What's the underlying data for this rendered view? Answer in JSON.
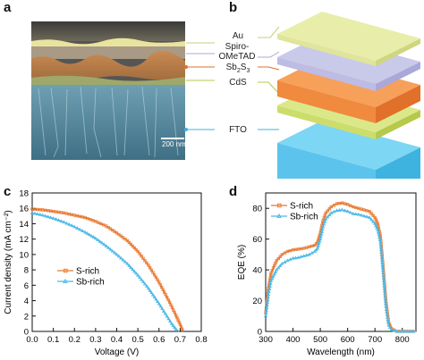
{
  "panels": {
    "a": "a",
    "b": "b",
    "c": "c",
    "d": "d"
  },
  "sem": {
    "scale_bar": "200 nm"
  },
  "stack": {
    "layers": [
      {
        "name": "Au",
        "top": "#e8eeaa",
        "side": "#cfd67d",
        "front": "#dfe59a"
      },
      {
        "name_line1": "Spiro-",
        "name_line2": "OMeTAD",
        "top": "#c9c9ea",
        "side": "#a9a8d9",
        "front": "#bdbce4"
      },
      {
        "name_main": "Sb",
        "name_sub1": "2",
        "name_mid": "S",
        "name_sub2": "3",
        "top": "#f6a05a",
        "side": "#e0702a",
        "front": "#f08a3e"
      },
      {
        "name": "CdS",
        "top": "#dbe88a",
        "side": "#b7c94a",
        "front": "#cddd6c"
      },
      {
        "name": "FTO",
        "top": "#7dd6f4",
        "side": "#3fb3e0",
        "front": "#5cc4ec"
      }
    ]
  },
  "chart_data": [
    {
      "panel": "c",
      "type": "line",
      "xlabel": "Voltage (V)",
      "ylabel": "Current density (mA cm⁻²)",
      "xlim": [
        0.0,
        0.8
      ],
      "ylim": [
        0,
        18
      ],
      "xticks": [
        "0.0",
        "0.1",
        "0.2",
        "0.3",
        "0.4",
        "0.5",
        "0.6",
        "0.7",
        "0.8"
      ],
      "yticks": [
        "0",
        "2",
        "4",
        "6",
        "8",
        "10",
        "12",
        "14",
        "16",
        "18"
      ],
      "legend_position": "lower-left",
      "series": [
        {
          "name": "S-rich",
          "color": "#e8762d",
          "marker": "square",
          "x": [
            0.0,
            0.05,
            0.1,
            0.15,
            0.2,
            0.25,
            0.3,
            0.35,
            0.4,
            0.45,
            0.5,
            0.55,
            0.6,
            0.65,
            0.68,
            0.7,
            0.715
          ],
          "y": [
            15.9,
            15.8,
            15.6,
            15.4,
            15.1,
            14.8,
            14.3,
            13.7,
            12.8,
            11.8,
            10.4,
            8.6,
            6.4,
            3.8,
            2.1,
            0.9,
            0.0
          ]
        },
        {
          "name": "Sb-rich",
          "color": "#4bb8e8",
          "marker": "triangle",
          "x": [
            0.0,
            0.05,
            0.1,
            0.15,
            0.2,
            0.25,
            0.3,
            0.35,
            0.4,
            0.45,
            0.5,
            0.55,
            0.6,
            0.63,
            0.66,
            0.68,
            0.695
          ],
          "y": [
            15.4,
            15.1,
            14.7,
            14.2,
            13.6,
            12.9,
            12.1,
            11.1,
            10.0,
            8.8,
            7.3,
            5.6,
            3.6,
            2.3,
            1.0,
            0.3,
            0.0
          ]
        }
      ]
    },
    {
      "panel": "d",
      "type": "line",
      "xlabel": "Wavelength (nm)",
      "ylabel": "EQE (%)",
      "xlim": [
        300,
        850
      ],
      "ylim": [
        0,
        90
      ],
      "xticks": [
        "300",
        "400",
        "500",
        "600",
        "700",
        "800"
      ],
      "yticks": [
        "0",
        "20",
        "40",
        "60",
        "80"
      ],
      "legend_position": "top-left",
      "series": [
        {
          "name": "S-rich",
          "color": "#e8762d",
          "marker": "square",
          "x": [
            300,
            310,
            320,
            340,
            360,
            380,
            400,
            420,
            440,
            460,
            480,
            490,
            500,
            510,
            520,
            540,
            560,
            580,
            600,
            620,
            640,
            660,
            680,
            700,
            710,
            720,
            730,
            740,
            750,
            760,
            780,
            800,
            850
          ],
          "y": [
            12,
            28,
            38,
            46,
            50,
            52,
            53,
            53.5,
            54,
            55,
            56,
            58,
            64,
            72,
            77,
            81,
            83,
            83.5,
            82.5,
            81,
            80,
            79,
            78,
            74,
            70,
            62,
            42,
            20,
            6,
            2,
            0,
            0,
            0
          ]
        },
        {
          "name": "Sb-rich",
          "color": "#4bb8e8",
          "marker": "triangle",
          "x": [
            300,
            310,
            320,
            340,
            360,
            380,
            400,
            420,
            440,
            460,
            480,
            490,
            500,
            510,
            520,
            540,
            560,
            580,
            600,
            620,
            640,
            660,
            680,
            700,
            710,
            720,
            730,
            740,
            750,
            760,
            780,
            800,
            850
          ],
          "y": [
            10,
            24,
            33,
            40,
            44,
            46,
            47.5,
            48,
            49,
            50,
            52,
            54,
            60,
            68,
            73,
            77,
            78.5,
            79,
            78,
            76.5,
            76,
            75,
            74,
            70,
            66,
            58,
            38,
            16,
            4,
            1,
            0,
            0,
            0
          ]
        }
      ]
    }
  ]
}
